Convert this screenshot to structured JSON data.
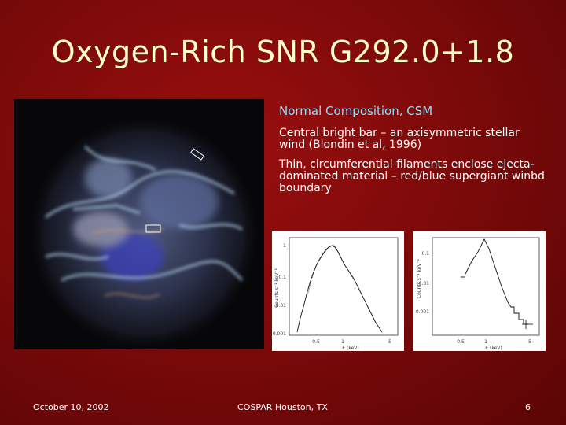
{
  "slide": {
    "title": "Oxygen-Rich SNR G292.0+1.8",
    "bullets": [
      "Normal Composition, CSM",
      "Central bright bar – an axisymmetric stellar wind (Blondin et al, 1996)",
      "Thin, circumferential filaments enclose ejecta-dominated material – red/blue supergiant winbd boundary"
    ]
  },
  "spectrum_left": {
    "ylabel": "Counts s⁻¹ keV⁻¹",
    "yticks": [
      "1",
      "0.1",
      "0.01",
      "0.001"
    ],
    "xticks": [
      "0.5",
      "1",
      "5"
    ],
    "xlabel": "E (keV)"
  },
  "spectrum_right": {
    "ylabel": "Counts s⁻¹ keV⁻¹",
    "yticks": [
      "0.1",
      "0.01",
      "0.001"
    ],
    "xticks": [
      "0.5",
      "1",
      "5"
    ],
    "xlabel": "E (keV)"
  },
  "footer": {
    "date": "October 10, 2002",
    "venue": "COSPAR Houston, TX",
    "page": "6"
  }
}
